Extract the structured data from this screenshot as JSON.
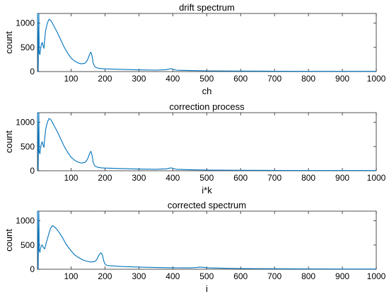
{
  "chart_data": [
    {
      "type": "line",
      "title": "drift spectrum",
      "xlabel": "ch",
      "ylabel": "count",
      "xlim": [
        1,
        1000
      ],
      "ylim": [
        0,
        1200
      ],
      "xticks": [
        100,
        200,
        300,
        400,
        500,
        600,
        700,
        800,
        900,
        1000
      ],
      "yticks": [
        0,
        500,
        1000
      ],
      "grid": false,
      "color": "#0072BD",
      "series": [
        {
          "x": [
            1,
            3,
            5,
            6,
            8,
            10,
            12,
            15,
            18,
            20,
            22,
            25,
            30,
            35,
            40,
            45,
            50,
            60,
            70,
            80,
            90,
            100,
            110,
            120,
            130,
            140,
            145,
            150,
            155,
            158,
            160,
            163,
            165,
            170,
            175,
            180,
            190,
            200,
            250,
            300,
            350,
            380,
            395,
            400,
            410,
            450,
            500,
            600,
            700,
            800,
            900,
            1000
          ],
          "y": [
            1200,
            0,
            1200,
            400,
            350,
            450,
            550,
            600,
            520,
            480,
            650,
            850,
            1000,
            1080,
            1060,
            1000,
            930,
            800,
            650,
            500,
            380,
            280,
            220,
            180,
            160,
            170,
            200,
            260,
            360,
            400,
            380,
            280,
            180,
            100,
            80,
            70,
            60,
            55,
            45,
            35,
            30,
            40,
            60,
            50,
            30,
            20,
            15,
            10,
            8,
            5,
            5,
            4
          ]
        }
      ]
    },
    {
      "type": "line",
      "title": "correction process",
      "xlabel": "i*k",
      "ylabel": "count",
      "xlim": [
        1,
        1000
      ],
      "ylim": [
        0,
        1200
      ],
      "xticks": [
        100,
        200,
        300,
        400,
        500,
        600,
        700,
        800,
        900,
        1000
      ],
      "yticks": [
        0,
        500,
        1000
      ],
      "grid": false,
      "color": "#0072BD",
      "series": [
        {
          "x": [
            1,
            3,
            5,
            6,
            8,
            10,
            12,
            15,
            18,
            20,
            22,
            25,
            30,
            35,
            40,
            45,
            50,
            60,
            70,
            80,
            90,
            100,
            110,
            120,
            130,
            140,
            145,
            150,
            155,
            158,
            160,
            163,
            165,
            170,
            175,
            180,
            190,
            200,
            250,
            300,
            350,
            380,
            395,
            400,
            410,
            450,
            500,
            600,
            700,
            800,
            900,
            1000
          ],
          "y": [
            1200,
            0,
            1200,
            400,
            350,
            450,
            550,
            600,
            520,
            480,
            650,
            850,
            1000,
            1080,
            1060,
            1000,
            930,
            800,
            650,
            500,
            380,
            280,
            220,
            180,
            160,
            170,
            200,
            260,
            360,
            400,
            380,
            280,
            180,
            100,
            80,
            70,
            60,
            55,
            45,
            35,
            30,
            40,
            60,
            50,
            30,
            20,
            15,
            10,
            8,
            5,
            5,
            4
          ]
        }
      ]
    },
    {
      "type": "line",
      "title": "corrected spectrum",
      "xlabel": "i",
      "ylabel": "count",
      "xlim": [
        1,
        1000
      ],
      "ylim": [
        0,
        1200
      ],
      "xticks": [
        100,
        200,
        300,
        400,
        500,
        600,
        700,
        800,
        900,
        1000
      ],
      "yticks": [
        0,
        500,
        1000
      ],
      "grid": false,
      "color": "#0072BD",
      "series": [
        {
          "x": [
            1,
            3,
            5,
            6,
            8,
            10,
            12,
            15,
            18,
            22,
            25,
            30,
            35,
            40,
            45,
            50,
            55,
            65,
            75,
            85,
            100,
            110,
            120,
            135,
            150,
            160,
            170,
            175,
            180,
            185,
            188,
            190,
            193,
            196,
            200,
            205,
            210,
            220,
            250,
            300,
            350,
            400,
            450,
            470,
            480,
            490,
            500,
            550,
            600,
            700,
            800,
            900,
            1000
          ],
          "y": [
            1200,
            0,
            1200,
            400,
            350,
            430,
            480,
            500,
            450,
            420,
            500,
            620,
            750,
            850,
            900,
            880,
            850,
            760,
            650,
            520,
            380,
            300,
            250,
            190,
            160,
            150,
            160,
            190,
            260,
            320,
            340,
            330,
            280,
            180,
            110,
            80,
            75,
            70,
            55,
            45,
            35,
            30,
            28,
            35,
            45,
            40,
            30,
            20,
            15,
            10,
            8,
            5,
            4
          ]
        }
      ]
    }
  ]
}
